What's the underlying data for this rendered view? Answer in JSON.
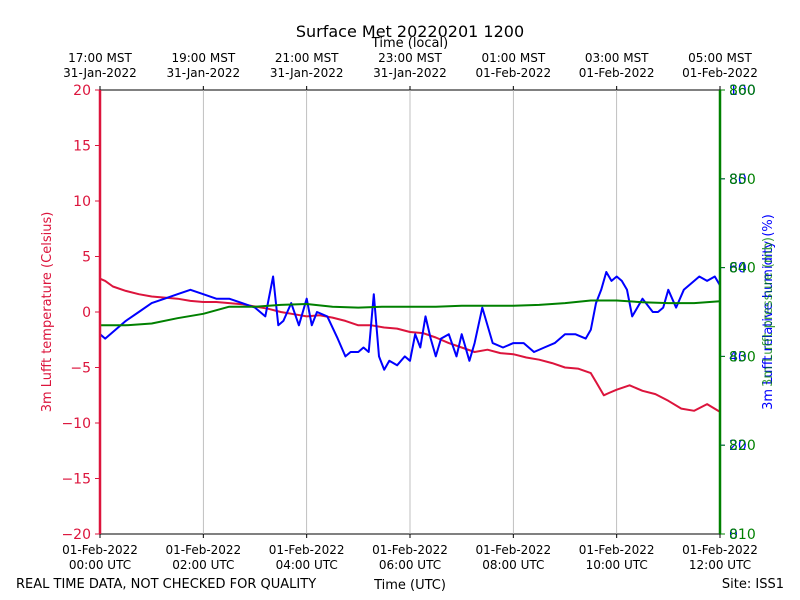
{
  "chart_data": {
    "type": "line",
    "title": "Surface Met 20220201 1200",
    "top_axis_label": "Time (local)",
    "xlabel": "Time (UTC)",
    "footer_left": "REAL TIME DATA, NOT CHECKED FOR QUALITY",
    "footer_right": "Site: ISS1",
    "x_range_hours": [
      0,
      12
    ],
    "x_ticks_bottom": [
      {
        "h": 0,
        "line1": "01-Feb-2022",
        "line2": "00:00 UTC"
      },
      {
        "h": 2,
        "line1": "01-Feb-2022",
        "line2": "02:00 UTC"
      },
      {
        "h": 4,
        "line1": "01-Feb-2022",
        "line2": "04:00 UTC"
      },
      {
        "h": 6,
        "line1": "01-Feb-2022",
        "line2": "06:00 UTC"
      },
      {
        "h": 8,
        "line1": "01-Feb-2022",
        "line2": "08:00 UTC"
      },
      {
        "h": 10,
        "line1": "01-Feb-2022",
        "line2": "10:00 UTC"
      },
      {
        "h": 12,
        "line1": "01-Feb-2022",
        "line2": "12:00 UTC"
      }
    ],
    "x_ticks_top": [
      {
        "h": 0,
        "line1": "17:00 MST",
        "line2": "31-Jan-2022"
      },
      {
        "h": 2,
        "line1": "19:00 MST",
        "line2": "31-Jan-2022"
      },
      {
        "h": 4,
        "line1": "21:00 MST",
        "line2": "31-Jan-2022"
      },
      {
        "h": 6,
        "line1": "23:00 MST",
        "line2": "31-Jan-2022"
      },
      {
        "h": 8,
        "line1": "01:00 MST",
        "line2": "01-Feb-2022"
      },
      {
        "h": 10,
        "line1": "03:00 MST",
        "line2": "01-Feb-2022"
      },
      {
        "h": 12,
        "line1": "05:00 MST",
        "line2": "01-Feb-2022"
      }
    ],
    "left_axis": {
      "label": "3m Lufft temperature (Celsius)",
      "color": "#dc143c",
      "ylim": [
        -20,
        20
      ],
      "ticks": [
        -20,
        -15,
        -10,
        -5,
        0,
        5,
        10,
        15,
        20
      ],
      "tick_labels": [
        "−20",
        "−15",
        "−10",
        "−5",
        "0",
        "5",
        "10",
        "15",
        "20"
      ]
    },
    "right_axes": [
      {
        "label": "3m Lufft relative humidity (%)",
        "color": "#0000ff",
        "ylim": [
          0,
          100
        ],
        "ticks": [
          0,
          20,
          40,
          60,
          80,
          100
        ],
        "tick_labels": [
          "0",
          "20",
          "40",
          "60",
          "80",
          "100"
        ]
      },
      {
        "label": "3m Lufft pressure (mb)",
        "color": "#008000",
        "ylim": [
          810,
          860
        ],
        "ticks": [
          810,
          820,
          830,
          840,
          850,
          860
        ],
        "tick_labels": [
          "810",
          "820",
          "830",
          "840",
          "850",
          "860"
        ]
      }
    ],
    "series": [
      {
        "name": "temperature",
        "axis": "left",
        "color": "#dc143c",
        "x_hours": [
          0,
          0.1,
          0.25,
          0.5,
          0.75,
          1.0,
          1.25,
          1.5,
          1.75,
          2.0,
          2.25,
          2.5,
          2.75,
          3.0,
          3.25,
          3.5,
          3.75,
          4.0,
          4.25,
          4.5,
          4.75,
          5.0,
          5.25,
          5.5,
          5.75,
          6.0,
          6.25,
          6.5,
          6.75,
          7.0,
          7.25,
          7.5,
          7.75,
          8.0,
          8.25,
          8.5,
          8.75,
          9.0,
          9.25,
          9.5,
          9.6,
          9.75,
          9.85,
          10.0,
          10.25,
          10.5,
          10.75,
          11.0,
          11.25,
          11.5,
          11.75,
          12.0
        ],
        "y": [
          3.0,
          2.8,
          2.3,
          1.9,
          1.6,
          1.4,
          1.3,
          1.2,
          1.0,
          0.9,
          0.9,
          0.8,
          0.7,
          0.5,
          0.3,
          0.0,
          -0.2,
          -0.4,
          -0.3,
          -0.5,
          -0.8,
          -1.2,
          -1.2,
          -1.4,
          -1.5,
          -1.8,
          -1.9,
          -2.3,
          -2.8,
          -3.2,
          -3.6,
          -3.4,
          -3.7,
          -3.8,
          -4.1,
          -4.3,
          -4.6,
          -5.0,
          -5.1,
          -5.5,
          -6.3,
          -7.5,
          -7.3,
          -7.0,
          -6.6,
          -7.1,
          -7.4,
          -8.0,
          -8.7,
          -8.9,
          -8.3,
          -9.0
        ]
      },
      {
        "name": "relative humidity",
        "axis": "right1",
        "color": "#0000ff",
        "x_hours": [
          0,
          0.1,
          0.3,
          0.5,
          0.75,
          1.0,
          1.25,
          1.5,
          1.75,
          2.0,
          2.25,
          2.5,
          2.75,
          3.0,
          3.2,
          3.35,
          3.45,
          3.55,
          3.7,
          3.85,
          4.0,
          4.1,
          4.2,
          4.4,
          4.6,
          4.75,
          4.85,
          5.0,
          5.1,
          5.2,
          5.3,
          5.4,
          5.5,
          5.6,
          5.75,
          5.9,
          6.0,
          6.1,
          6.2,
          6.3,
          6.4,
          6.5,
          6.6,
          6.75,
          6.9,
          7.0,
          7.15,
          7.25,
          7.4,
          7.6,
          7.8,
          8.0,
          8.2,
          8.4,
          8.6,
          8.8,
          9.0,
          9.2,
          9.4,
          9.5,
          9.6,
          9.7,
          9.8,
          9.9,
          10.0,
          10.1,
          10.2,
          10.3,
          10.5,
          10.7,
          10.8,
          10.9,
          11.0,
          11.15,
          11.3,
          11.5,
          11.6,
          11.75,
          11.9,
          12.0
        ],
        "y": [
          45,
          44,
          46,
          48,
          50,
          52,
          53,
          54,
          55,
          54,
          53,
          53,
          52,
          51,
          49,
          58,
          47,
          48,
          52,
          47,
          53,
          47,
          50,
          49,
          44,
          40,
          41,
          41,
          42,
          41,
          54,
          40,
          37,
          39,
          38,
          40,
          39,
          45,
          42,
          49,
          44,
          40,
          44,
          45,
          40,
          45,
          39,
          43,
          51,
          43,
          42,
          43,
          43,
          41,
          42,
          43,
          45,
          45,
          44,
          46,
          52,
          55,
          59,
          57,
          58,
          57,
          55,
          49,
          53,
          50,
          50,
          51,
          55,
          51,
          55,
          57,
          58,
          57,
          58,
          56
        ]
      },
      {
        "name": "pressure",
        "axis": "right2",
        "color": "#008000",
        "x_hours": [
          0,
          0.5,
          1.0,
          1.5,
          2.0,
          2.5,
          3.0,
          3.5,
          4.0,
          4.5,
          5.0,
          5.5,
          6.0,
          6.5,
          7.0,
          7.5,
          8.0,
          8.5,
          9.0,
          9.5,
          10.0,
          10.5,
          11.0,
          11.5,
          12.0
        ],
        "y": [
          833.5,
          833.5,
          833.7,
          834.3,
          834.8,
          835.6,
          835.6,
          835.8,
          835.9,
          835.6,
          835.5,
          835.6,
          835.6,
          835.6,
          835.7,
          835.7,
          835.7,
          835.8,
          836.0,
          836.3,
          836.3,
          836.1,
          836.0,
          836.0,
          836.2
        ]
      }
    ]
  }
}
